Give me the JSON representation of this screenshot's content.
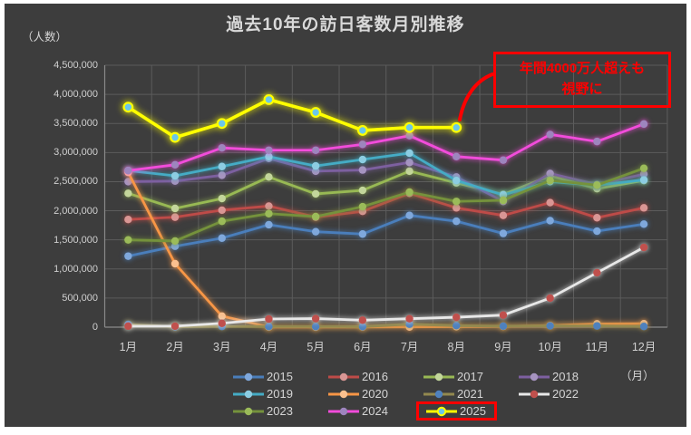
{
  "page": {
    "background": "#FFFFFF",
    "chart_background": "#3D3D3D",
    "gridline_color": "#5C5C5C",
    "axis_color": "#8A8A8A",
    "text_color": "#D5D5D5"
  },
  "chart_data": {
    "type": "line",
    "title": "過去10年の訪日客数月別推移",
    "ylabel": "（人数）",
    "xlabel": "（月）",
    "ylim": [
      0,
      4500000
    ],
    "y_tick_step": 500000,
    "y_tick_labels": [
      "0",
      "500,000",
      "1,000,000",
      "1,500,000",
      "2,000,000",
      "2,500,000",
      "3,000,000",
      "3,500,000",
      "4,000,000",
      "4,500,000"
    ],
    "grid": true,
    "legend_position": "bottom",
    "categories": [
      "1月",
      "2月",
      "3月",
      "4月",
      "5月",
      "6月",
      "7月",
      "8月",
      "9月",
      "10月",
      "11月",
      "12月"
    ],
    "series": [
      {
        "name": "2015",
        "line_color": "#4A7EBB",
        "marker_color": "#7FA8DC",
        "values": [
          1220000,
          1390000,
          1530000,
          1760000,
          1640000,
          1600000,
          1920000,
          1820000,
          1610000,
          1830000,
          1650000,
          1770000
        ]
      },
      {
        "name": "2016",
        "line_color": "#BE4B48",
        "marker_color": "#D99694",
        "values": [
          1850000,
          1890000,
          2010000,
          2080000,
          1890000,
          1990000,
          2300000,
          2050000,
          1920000,
          2140000,
          1880000,
          2050000
        ]
      },
      {
        "name": "2017",
        "line_color": "#98B954",
        "marker_color": "#C3D69B",
        "values": [
          2300000,
          2040000,
          2210000,
          2580000,
          2290000,
          2350000,
          2680000,
          2480000,
          2280000,
          2600000,
          2380000,
          2520000
        ]
      },
      {
        "name": "2018",
        "line_color": "#7D60A0",
        "marker_color": "#A694C0",
        "values": [
          2500000,
          2510000,
          2610000,
          2900000,
          2680000,
          2700000,
          2830000,
          2580000,
          2160000,
          2640000,
          2450000,
          2630000
        ]
      },
      {
        "name": "2019",
        "line_color": "#45ACC5",
        "marker_color": "#8CCDE2",
        "values": [
          2690000,
          2600000,
          2760000,
          2930000,
          2770000,
          2880000,
          2990000,
          2520000,
          2270000,
          2500000,
          2440000,
          2530000
        ]
      },
      {
        "name": "2020",
        "line_color": "#F79646",
        "marker_color": "#FAC08F",
        "values": [
          2660000,
          1090000,
          190000,
          3000,
          2000,
          3000,
          4000,
          9000,
          14000,
          27000,
          57000,
          59000
        ]
      },
      {
        "name": "2021",
        "line_color": "#93894F",
        "marker_color": "#4F81BD",
        "values": [
          47000,
          7000,
          12000,
          11000,
          10000,
          9000,
          51000,
          26000,
          18000,
          22000,
          21000,
          12000
        ]
      },
      {
        "name": "2022",
        "line_color": "#E8E8E8",
        "marker_color": "#C0504D",
        "values": [
          18000,
          17000,
          66000,
          140000,
          147000,
          120000,
          145000,
          170000,
          207000,
          499000,
          935000,
          1370000
        ]
      },
      {
        "name": "2023",
        "line_color": "#75923C",
        "marker_color": "#9BBB59",
        "values": [
          1500000,
          1480000,
          1820000,
          1950000,
          1900000,
          2070000,
          2320000,
          2160000,
          2180000,
          2520000,
          2440000,
          2730000
        ]
      },
      {
        "name": "2024",
        "line_color": "#F24CDB",
        "marker_color": "#9E85BE",
        "values": [
          2690000,
          2790000,
          3080000,
          3040000,
          3040000,
          3140000,
          3290000,
          2930000,
          2870000,
          3310000,
          3190000,
          3490000
        ]
      },
      {
        "name": "2025",
        "line_color": "#FFFF00",
        "marker_color": "#6BC7E8",
        "marker_ring": "#FFFF00",
        "highlighted": true,
        "values": [
          3780000,
          3260000,
          3500000,
          3910000,
          3690000,
          3380000,
          3430000,
          3430000,
          null,
          null,
          null,
          null
        ]
      }
    ],
    "annotation": {
      "line1": "年間4000万人超えも",
      "line2": "視野に",
      "color": "#FF0000"
    }
  }
}
